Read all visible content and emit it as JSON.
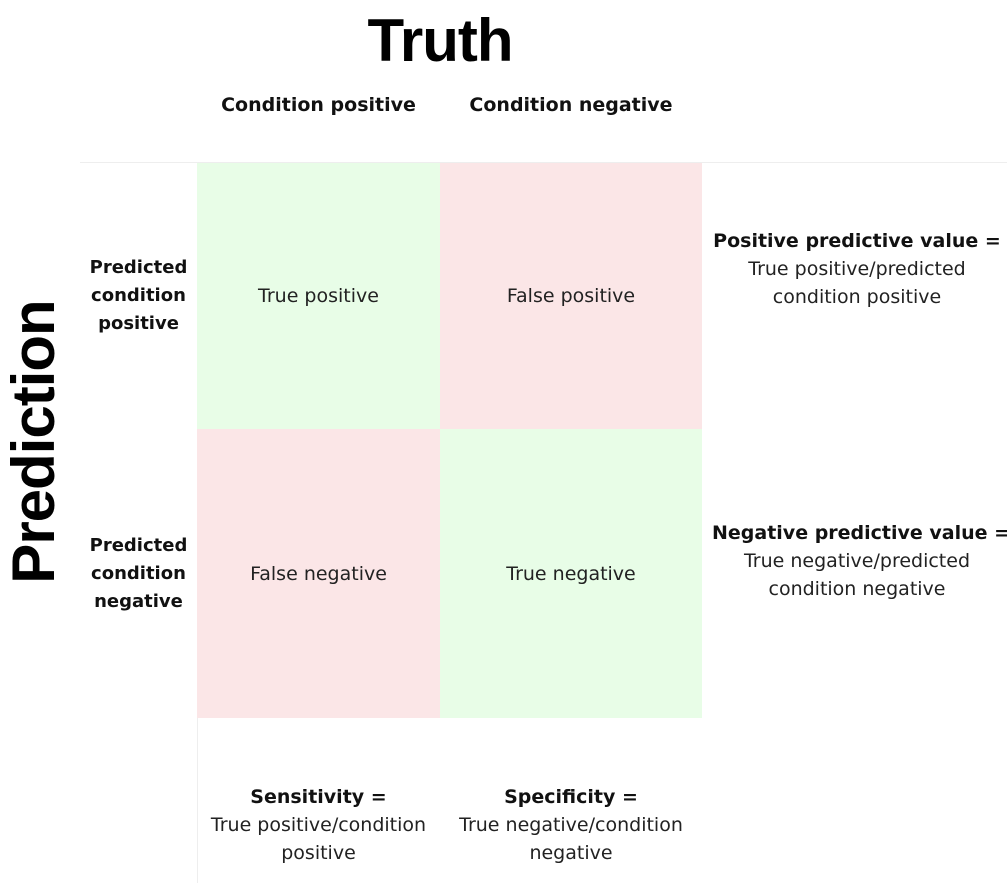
{
  "titles": {
    "truth": "Truth",
    "prediction": "Prediction"
  },
  "columns": {
    "condition_positive": "Condition positive",
    "condition_negative": "Condition negative"
  },
  "rows": {
    "predicted_positive": [
      "Predicted",
      "condition",
      "positive"
    ],
    "predicted_negative": [
      "Predicted",
      "condition",
      "negative"
    ]
  },
  "cells": {
    "true_positive": "True positive",
    "false_positive": "False positive",
    "false_negative": "False negative",
    "true_negative": "True negative"
  },
  "metrics": {
    "ppv": {
      "title": "Positive predictive value =",
      "line1": "True positive/predicted",
      "line2": "condition positive"
    },
    "npv": {
      "title": "Negative predictive value =",
      "line1": "True negative/predicted",
      "line2": "condition negative"
    },
    "sensitivity": {
      "title": "Sensitivity =",
      "line1": "True positive/condition",
      "line2": "positive"
    },
    "specificity": {
      "title": "Specificity =",
      "line1": "True negative/condition",
      "line2": "negative"
    }
  },
  "colors": {
    "correct_cell": "#e8fde7",
    "incorrect_cell": "#fbe6e7",
    "grid_line": "#eeeeee"
  }
}
